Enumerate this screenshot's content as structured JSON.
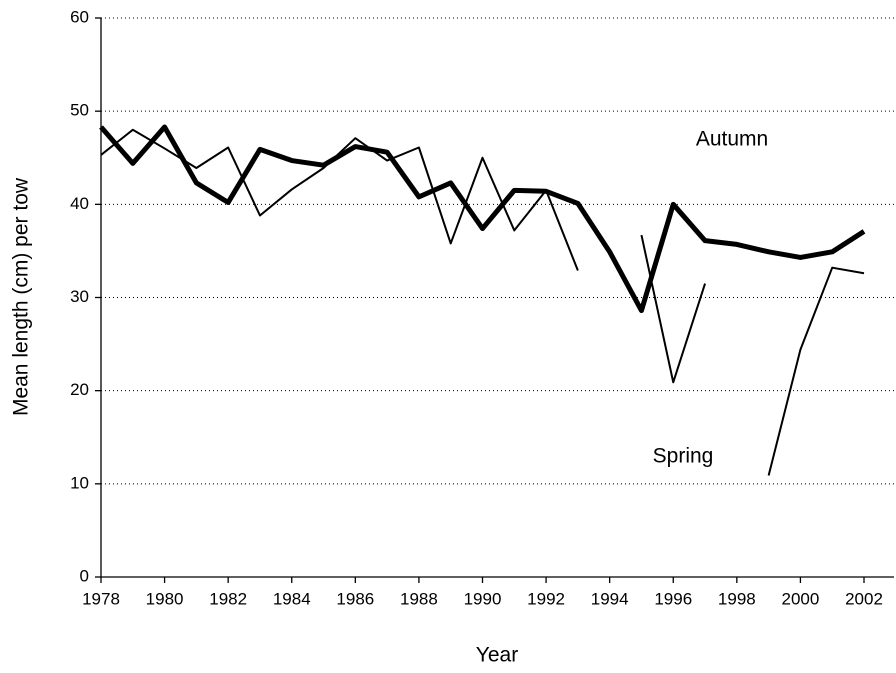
{
  "chart_data": {
    "type": "line",
    "x_label": "Year",
    "y_label": "Mean length (cm) per tow",
    "x": [
      1978,
      1979,
      1980,
      1981,
      1982,
      1983,
      1984,
      1985,
      1986,
      1987,
      1988,
      1989,
      1990,
      1991,
      1992,
      1993,
      1994,
      1995,
      1996,
      1997,
      1998,
      1999,
      2000,
      2001,
      2002
    ],
    "series": [
      {
        "name": "Autumn",
        "color": "#000000",
        "line_width": 5,
        "values": [
          48.3,
          44.4,
          48.3,
          42.3,
          40.2,
          45.9,
          44.7,
          44.2,
          46.2,
          45.6,
          40.8,
          42.3,
          37.4,
          41.5,
          41.4,
          40.1,
          34.9,
          28.6,
          40.0,
          36.1,
          35.7,
          34.9,
          34.3,
          34.9,
          37.1
        ]
      },
      {
        "name": "Spring",
        "color": "#000000",
        "line_width": 2,
        "values": [
          45.3,
          48.0,
          46.0,
          43.9,
          46.1,
          38.8,
          41.6,
          43.9,
          47.1,
          44.7,
          46.1,
          35.8,
          45.0,
          37.2,
          41.5,
          32.9,
          null,
          36.7,
          20.9,
          31.5,
          null,
          10.9,
          24.4,
          33.2,
          32.6
        ]
      }
    ],
    "xlim": [
      1978,
      2002
    ],
    "xticks": [
      1978,
      1980,
      1982,
      1984,
      1986,
      1988,
      1990,
      1992,
      1994,
      1996,
      1998,
      2000,
      2002
    ],
    "ylim": [
      0,
      60
    ],
    "yticks": [
      0,
      10,
      20,
      30,
      40,
      50,
      60
    ],
    "grid": true
  }
}
